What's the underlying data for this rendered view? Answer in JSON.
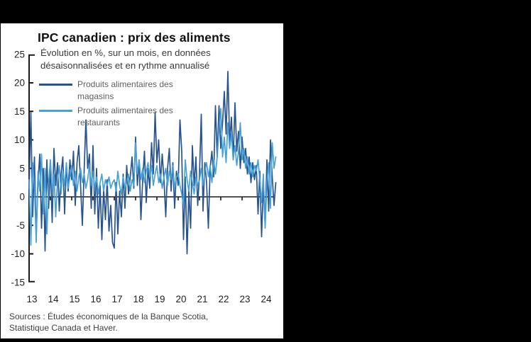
{
  "window": {
    "background": "#000000",
    "card_background": "#ffffff"
  },
  "chart_data": {
    "type": "line",
    "title": "IPC canadien : prix des aliments",
    "subtitle_lines": [
      "Évolution en %, sur un mois, en données",
      "désaisonnalisées et en rythme annualisé"
    ],
    "x_unit": "monthly, Jan 2013 – Aug 2024",
    "x_tick_labels": [
      "13",
      "14",
      "15",
      "16",
      "17",
      "18",
      "19",
      "20",
      "21",
      "22",
      "23",
      "24"
    ],
    "y_ticks": [
      25,
      20,
      15,
      10,
      5,
      0,
      "-5",
      "-10",
      "-15"
    ],
    "ylim": [
      -15,
      25
    ],
    "grid": false,
    "legend_position": "top-left",
    "axis_color": "#1a1a1a",
    "series": [
      {
        "id": "magasins",
        "name_lines": [
          "Produits alimentaires des",
          "magasins"
        ],
        "color": "#27538e",
        "values": [
          1.5,
          14.8,
          -3.5,
          7,
          -7,
          2.5,
          7.5,
          -5.5,
          5,
          -9.5,
          6.5,
          -2,
          5.5,
          -4.5,
          8.5,
          2,
          6,
          -2.5,
          4,
          7,
          -3,
          5.5,
          1,
          6.5,
          3,
          8,
          -1.5,
          6,
          9,
          2,
          -5,
          4.5,
          13.5,
          5,
          7.5,
          -2,
          9,
          -3,
          5,
          -5.5,
          2,
          -7.5,
          1.5,
          -4,
          3,
          -6,
          -1.5,
          -8,
          -9,
          2.5,
          -6.5,
          1,
          -3.5,
          4,
          -2,
          5.5,
          0.5,
          3.5,
          7,
          1.5,
          10.5,
          2,
          6.5,
          -4,
          3,
          8,
          -1,
          5,
          1.5,
          9.5,
          4,
          14.8,
          6,
          10,
          2.5,
          7.5,
          3,
          -3.5,
          5,
          8.5,
          1,
          6,
          -2,
          4.5,
          2,
          13.5,
          8,
          -7.5,
          3.5,
          -10,
          1,
          -5.5,
          9,
          2,
          7,
          -1.5,
          4,
          14.5,
          -2.5,
          6,
          2.5,
          -5.5,
          5,
          8,
          3.5,
          16,
          7,
          16,
          8.5,
          13,
          18.5,
          11,
          22,
          9.5,
          14,
          6.5,
          16.5,
          8,
          11.5,
          5,
          10.5,
          6,
          8.5,
          4,
          7,
          2.5,
          6,
          3,
          5.5,
          -3,
          4.5,
          -7,
          2,
          -5,
          6.5,
          -2.5,
          10,
          3.5,
          -1.5,
          2.5
        ]
      },
      {
        "id": "restaurants",
        "name_lines": [
          "Produits alimentaires des",
          "restaurants"
        ],
        "color": "#45a1d8",
        "values": [
          3,
          -8.5,
          6,
          2,
          -8,
          4.5,
          1,
          7.5,
          -3,
          5,
          -6.5,
          2.5,
          6.5,
          1,
          4,
          -3.5,
          3,
          5.5,
          0.5,
          4.5,
          2,
          6,
          1.5,
          3.5,
          5.5,
          2,
          4.5,
          1,
          3.5,
          5,
          2.5,
          4,
          1.5,
          3,
          5.5,
          2,
          4.5,
          1.5,
          3.5,
          0.5,
          2.5,
          4,
          1,
          3,
          2,
          3.5,
          1.5,
          2.5,
          3,
          1,
          4.5,
          2,
          0.5,
          3.5,
          1.5,
          2.5,
          4,
          1,
          3,
          2,
          9.5,
          4,
          6.5,
          3,
          5,
          2.5,
          4.5,
          6,
          3.5,
          5.5,
          2,
          4,
          5.5,
          2.5,
          4,
          1.5,
          3.5,
          5,
          2,
          4.5,
          3,
          5.5,
          1.5,
          3.5,
          4,
          2,
          0.5,
          -1.5,
          6.5,
          3,
          1,
          4.5,
          2.5,
          0.5,
          3.5,
          2,
          3,
          5,
          2,
          4.5,
          6,
          3.5,
          5.5,
          2.5,
          6.5,
          4,
          7,
          12,
          15.5,
          7,
          10.5,
          6,
          13,
          8.5,
          11,
          6.5,
          9,
          5.5,
          8,
          13,
          6.5,
          8.5,
          5,
          7,
          4,
          6,
          3.5,
          5.5,
          4.5,
          6.5,
          3,
          -1,
          4,
          -5.5,
          2.5,
          6,
          -2,
          9.5,
          5,
          7
        ]
      }
    ],
    "source_lines": [
      "Sources : Études économiques de la Banque Scotia,",
      "Statistique Canada et Haver."
    ]
  }
}
